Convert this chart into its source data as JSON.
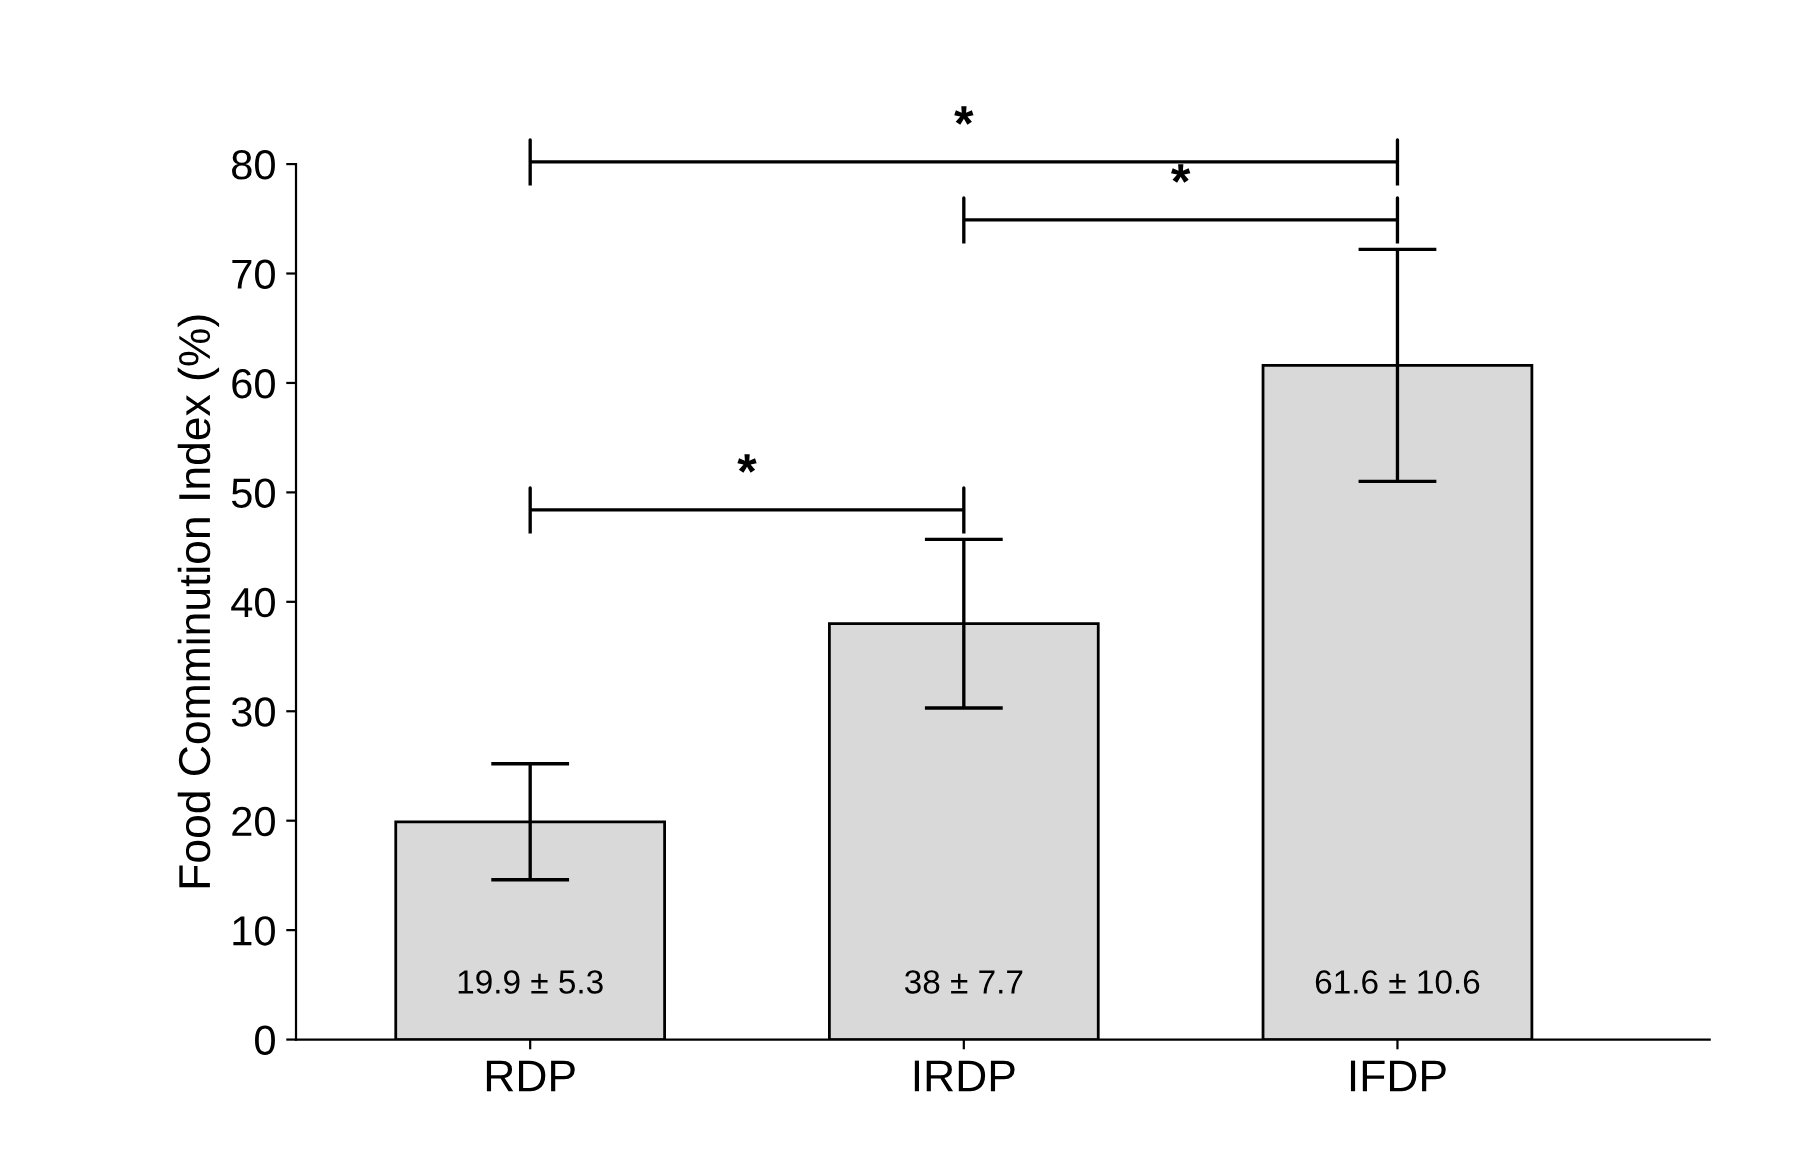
{
  "chart_data": {
    "type": "bar",
    "ylabel": "Food Comminution Index (%)",
    "categories": [
      "RDP",
      "IRDP",
      "IFDP"
    ],
    "values": [
      19.9,
      38,
      61.6
    ],
    "errors": [
      5.3,
      7.7,
      10.6
    ],
    "value_labels": [
      "19.9 ± 5.3",
      "38 ± 7.7",
      "61.6 ± 10.6"
    ],
    "color": "#d9d9d9",
    "ylim": [
      0,
      80
    ],
    "yticks": [
      0,
      10,
      20,
      30,
      40,
      50,
      60,
      70,
      80
    ],
    "grid": false,
    "legend": false,
    "annotations": [
      "*",
      "*",
      "*"
    ]
  }
}
